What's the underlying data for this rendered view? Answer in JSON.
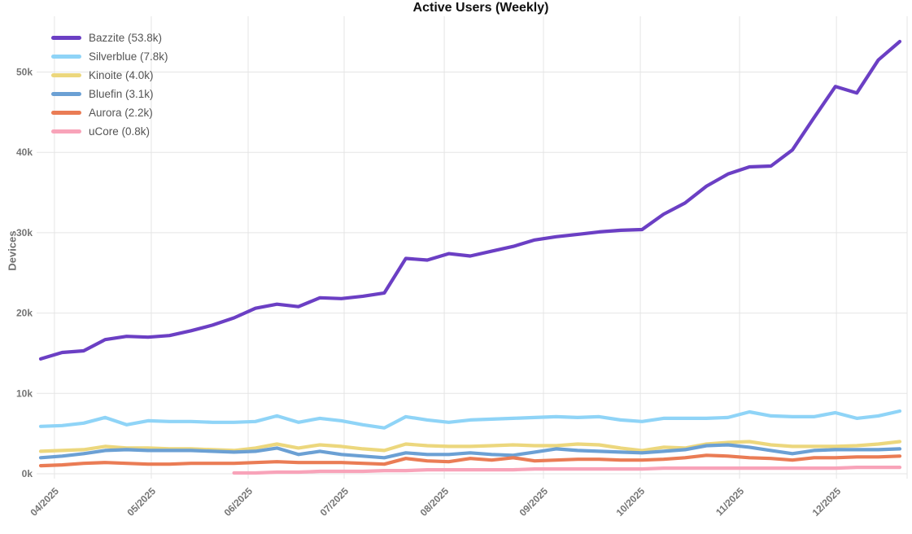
{
  "chart_data": {
    "type": "line",
    "title": "Active Users (Weekly)",
    "ylabel": "Devices",
    "xlabel": "",
    "grid": true,
    "legend_position": "top-left",
    "ylim_k": [
      0,
      56
    ],
    "y_ticks": [
      {
        "value": 0,
        "label": "0k"
      },
      {
        "value": 10,
        "label": "10k"
      },
      {
        "value": 20,
        "label": "20k"
      },
      {
        "value": 30,
        "label": "30k"
      },
      {
        "value": 40,
        "label": "40k"
      },
      {
        "value": 50,
        "label": "50k"
      }
    ],
    "x_ticks": [
      {
        "label": "04/2025",
        "index": 0.64
      },
      {
        "label": "05/2025",
        "index": 5.15
      },
      {
        "label": "06/2025",
        "index": 9.66
      },
      {
        "label": "07/2025",
        "index": 14.13
      },
      {
        "label": "08/2025",
        "index": 18.79
      },
      {
        "label": "09/2025",
        "index": 23.41
      },
      {
        "label": "10/2025",
        "index": 27.92
      },
      {
        "label": "11/2025",
        "index": 32.54
      },
      {
        "label": "12/2025",
        "index": 37.05
      }
    ],
    "points_per_series": 41,
    "series": [
      {
        "name": "Bazzite",
        "legend_label": "Bazzite (53.8k)",
        "current_value_k": 53.8,
        "color": "#6b3fc4",
        "values_k": [
          14.3,
          15.1,
          15.3,
          16.7,
          17.1,
          17.0,
          17.2,
          17.8,
          18.5,
          19.4,
          20.6,
          21.1,
          20.8,
          21.9,
          21.8,
          22.1,
          22.5,
          26.8,
          26.6,
          27.4,
          27.1,
          27.7,
          28.3,
          29.1,
          29.5,
          29.8,
          30.1,
          30.3,
          30.4,
          32.3,
          33.7,
          35.8,
          37.3,
          38.2,
          38.3,
          40.3,
          44.3,
          48.2,
          47.4,
          51.5,
          53.8
        ]
      },
      {
        "name": "Silverblue",
        "legend_label": "Silverblue (7.8k)",
        "current_value_k": 7.8,
        "color": "#8fd4f7",
        "values_k": [
          5.9,
          6.0,
          6.3,
          7.0,
          6.1,
          6.6,
          6.5,
          6.5,
          6.4,
          6.4,
          6.5,
          7.2,
          6.4,
          6.9,
          6.6,
          6.1,
          5.7,
          7.1,
          6.7,
          6.4,
          6.7,
          6.8,
          6.9,
          7.0,
          7.1,
          7.0,
          7.1,
          6.7,
          6.5,
          6.9,
          6.9,
          6.9,
          7.0,
          7.7,
          7.2,
          7.1,
          7.1,
          7.6,
          6.9,
          7.2,
          7.8
        ]
      },
      {
        "name": "Kinoite",
        "legend_label": "Kinoite (4.0k)",
        "current_value_k": 4.0,
        "color": "#ecd77d",
        "values_k": [
          2.8,
          2.9,
          3.0,
          3.4,
          3.2,
          3.2,
          3.1,
          3.1,
          3.0,
          2.9,
          3.2,
          3.7,
          3.2,
          3.6,
          3.4,
          3.1,
          2.9,
          3.7,
          3.5,
          3.4,
          3.4,
          3.5,
          3.6,
          3.5,
          3.5,
          3.7,
          3.6,
          3.2,
          2.9,
          3.3,
          3.2,
          3.7,
          3.9,
          4.0,
          3.6,
          3.4,
          3.4,
          3.4,
          3.5,
          3.7,
          4.0
        ]
      },
      {
        "name": "Bluefin",
        "legend_label": "Bluefin (3.1k)",
        "current_value_k": 3.1,
        "color": "#6ba0d4",
        "values_k": [
          2.0,
          2.2,
          2.5,
          2.9,
          3.0,
          2.9,
          2.9,
          2.9,
          2.8,
          2.7,
          2.8,
          3.2,
          2.4,
          2.8,
          2.4,
          2.2,
          2.0,
          2.6,
          2.4,
          2.4,
          2.6,
          2.4,
          2.3,
          2.7,
          3.1,
          2.9,
          2.8,
          2.7,
          2.6,
          2.8,
          3.0,
          3.5,
          3.6,
          3.3,
          2.9,
          2.5,
          2.9,
          3.0,
          3.0,
          3.0,
          3.1
        ]
      },
      {
        "name": "Aurora",
        "legend_label": "Aurora (2.2k)",
        "current_value_k": 2.2,
        "color": "#ea7c55",
        "values_k": [
          1.0,
          1.1,
          1.3,
          1.4,
          1.3,
          1.2,
          1.2,
          1.3,
          1.3,
          1.3,
          1.4,
          1.5,
          1.4,
          1.4,
          1.4,
          1.3,
          1.2,
          1.9,
          1.6,
          1.5,
          1.9,
          1.7,
          2.0,
          1.6,
          1.7,
          1.8,
          1.8,
          1.7,
          1.7,
          1.8,
          2.0,
          2.3,
          2.2,
          2.0,
          1.9,
          1.7,
          2.0,
          2.0,
          2.1,
          2.1,
          2.2
        ]
      },
      {
        "name": "uCore",
        "legend_label": "uCore (0.8k)",
        "current_value_k": 0.8,
        "color": "#f8a3b9",
        "values_k": [
          null,
          null,
          null,
          null,
          null,
          null,
          null,
          null,
          null,
          0.1,
          0.1,
          0.2,
          0.2,
          0.3,
          0.3,
          0.3,
          0.4,
          0.4,
          0.5,
          0.5,
          0.5,
          0.5,
          0.5,
          0.6,
          0.6,
          0.6,
          0.6,
          0.6,
          0.6,
          0.7,
          0.7,
          0.7,
          0.7,
          0.7,
          0.7,
          0.7,
          0.7,
          0.7,
          0.8,
          0.8,
          0.8
        ]
      }
    ]
  },
  "style_colors": {
    "background": "#ffffff",
    "grid": "#e5e5e5",
    "axis_text": "#757575",
    "title_text": "#111111",
    "legend_text": "#545454"
  }
}
